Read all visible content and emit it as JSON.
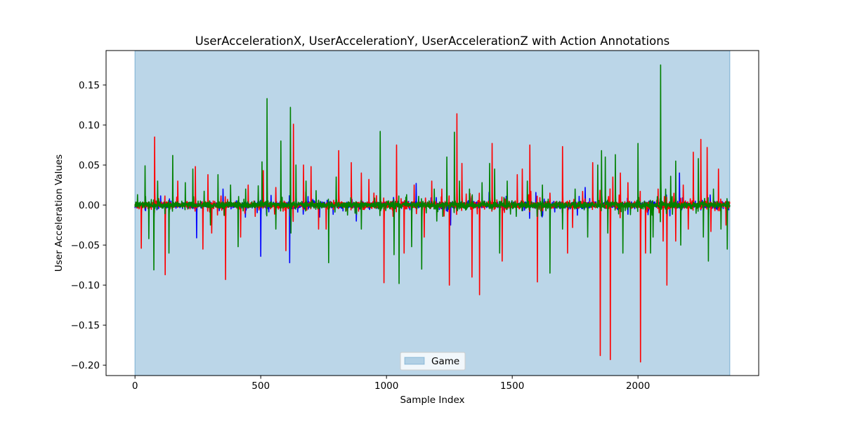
{
  "chart_data": {
    "type": "line",
    "title": "UserAccelerationX, UserAccelerationY, UserAccelerationZ with Action Annotations",
    "xlabel": "Sample Index",
    "ylabel": "User Acceleration Values",
    "xlim": [
      -115,
      2480
    ],
    "ylim": [
      -0.213,
      0.193
    ],
    "x_ticks": [
      0,
      500,
      1000,
      1500,
      2000
    ],
    "x_tick_labels": [
      "0",
      "500",
      "1000",
      "1500",
      "2000"
    ],
    "y_ticks": [
      -0.2,
      -0.15,
      -0.1,
      -0.05,
      0.0,
      0.05,
      0.1,
      0.15
    ],
    "y_tick_labels": [
      "−0.20",
      "−0.15",
      "−0.10",
      "−0.05",
      "0.00",
      "0.05",
      "0.10",
      "0.15"
    ],
    "grid": false,
    "legend": {
      "placement": "lower center",
      "entries": [
        {
          "label": "Game",
          "color": "#1f77b4",
          "alpha": 0.3
        }
      ]
    },
    "annotations": [
      {
        "label": "Game",
        "x_start": 0,
        "x_end": 2365,
        "color": "#1f77b4",
        "alpha": 0.3
      }
    ],
    "n_samples": 2366,
    "noise_level": 0.004,
    "series": [
      {
        "color": "#0000ff",
        "spikes": [
          [
            245,
            -0.041
          ],
          [
            500,
            -0.064
          ],
          [
            615,
            -0.072
          ],
          [
            1118,
            0.027
          ],
          [
            1255,
            -0.025
          ],
          [
            1790,
            0.022
          ],
          [
            2165,
            0.04
          ],
          [
            2040,
            -0.012
          ],
          [
            350,
            0.02
          ],
          [
            880,
            -0.02
          ]
        ]
      },
      {
        "color": "#ff0000",
        "spikes": [
          [
            78,
            0.085
          ],
          [
            120,
            -0.087
          ],
          [
            25,
            -0.054
          ],
          [
            240,
            0.048
          ],
          [
            270,
            -0.055
          ],
          [
            290,
            0.038
          ],
          [
            305,
            -0.035
          ],
          [
            360,
            -0.093
          ],
          [
            450,
            0.025
          ],
          [
            510,
            0.043
          ],
          [
            600,
            -0.057
          ],
          [
            630,
            0.101
          ],
          [
            670,
            0.05
          ],
          [
            700,
            0.048
          ],
          [
            730,
            -0.03
          ],
          [
            810,
            0.068
          ],
          [
            860,
            0.053
          ],
          [
            900,
            0.04
          ],
          [
            930,
            0.032
          ],
          [
            990,
            -0.097
          ],
          [
            1040,
            0.075
          ],
          [
            1070,
            -0.06
          ],
          [
            1110,
            0.025
          ],
          [
            1180,
            0.03
          ],
          [
            1220,
            0.02
          ],
          [
            1250,
            -0.1
          ],
          [
            1280,
            0.114
          ],
          [
            1300,
            0.052
          ],
          [
            1340,
            -0.09
          ],
          [
            1370,
            -0.112
          ],
          [
            1420,
            0.077
          ],
          [
            1460,
            -0.07
          ],
          [
            1520,
            0.038
          ],
          [
            1540,
            0.045
          ],
          [
            1570,
            0.075
          ],
          [
            1600,
            -0.096
          ],
          [
            1650,
            0.015
          ],
          [
            1700,
            0.073
          ],
          [
            1720,
            -0.06
          ],
          [
            1740,
            -0.028
          ],
          [
            1780,
            0.017
          ],
          [
            1820,
            0.053
          ],
          [
            1850,
            -0.188
          ],
          [
            1890,
            -0.193
          ],
          [
            1930,
            0.04
          ],
          [
            1960,
            0.028
          ],
          [
            2010,
            -0.196
          ],
          [
            2030,
            -0.06
          ],
          [
            2080,
            0.02
          ],
          [
            2115,
            -0.1
          ],
          [
            2180,
            0.025
          ],
          [
            2220,
            0.066
          ],
          [
            2250,
            0.082
          ],
          [
            2275,
            0.072
          ],
          [
            2290,
            -0.033
          ],
          [
            2320,
            0.045
          ],
          [
            2350,
            -0.025
          ],
          [
            2200,
            -0.03
          ],
          [
            2100,
            -0.045
          ],
          [
            1900,
            0.035
          ],
          [
            1150,
            -0.04
          ],
          [
            950,
            0.015
          ],
          [
            760,
            -0.03
          ],
          [
            560,
            0.022
          ],
          [
            420,
            -0.04
          ],
          [
            170,
            0.03
          ],
          [
            2150,
            -0.045
          ]
        ]
      },
      {
        "color": "#008000",
        "spikes": [
          [
            10,
            0.013
          ],
          [
            40,
            0.049
          ],
          [
            55,
            -0.042
          ],
          [
            75,
            -0.081
          ],
          [
            90,
            0.03
          ],
          [
            135,
            -0.06
          ],
          [
            150,
            0.062
          ],
          [
            200,
            0.028
          ],
          [
            230,
            0.045
          ],
          [
            330,
            0.038
          ],
          [
            380,
            0.025
          ],
          [
            410,
            -0.052
          ],
          [
            440,
            0.02
          ],
          [
            490,
            0.024
          ],
          [
            505,
            0.054
          ],
          [
            525,
            0.133
          ],
          [
            560,
            -0.03
          ],
          [
            580,
            0.08
          ],
          [
            618,
            0.122
          ],
          [
            640,
            0.05
          ],
          [
            680,
            0.03
          ],
          [
            720,
            0.018
          ],
          [
            770,
            -0.072
          ],
          [
            800,
            0.035
          ],
          [
            900,
            -0.03
          ],
          [
            975,
            0.092
          ],
          [
            1030,
            -0.062
          ],
          [
            1050,
            -0.098
          ],
          [
            1080,
            0.013
          ],
          [
            1100,
            -0.052
          ],
          [
            1140,
            -0.08
          ],
          [
            1190,
            0.02
          ],
          [
            1240,
            0.06
          ],
          [
            1270,
            0.091
          ],
          [
            1290,
            0.03
          ],
          [
            1330,
            0.02
          ],
          [
            1380,
            0.028
          ],
          [
            1410,
            0.052
          ],
          [
            1430,
            0.045
          ],
          [
            1450,
            -0.06
          ],
          [
            1480,
            0.03
          ],
          [
            1560,
            0.03
          ],
          [
            1650,
            -0.085
          ],
          [
            1700,
            -0.03
          ],
          [
            1750,
            0.02
          ],
          [
            1800,
            -0.04
          ],
          [
            1840,
            0.05
          ],
          [
            1855,
            0.068
          ],
          [
            1870,
            0.06
          ],
          [
            1910,
            0.063
          ],
          [
            1940,
            -0.06
          ],
          [
            1970,
            -0.012
          ],
          [
            2000,
            0.077
          ],
          [
            2050,
            -0.06
          ],
          [
            2060,
            -0.04
          ],
          [
            2090,
            0.175
          ],
          [
            2110,
            0.02
          ],
          [
            2130,
            0.036
          ],
          [
            2150,
            0.055
          ],
          [
            2170,
            -0.05
          ],
          [
            2240,
            0.058
          ],
          [
            2260,
            -0.04
          ],
          [
            2280,
            -0.07
          ],
          [
            2300,
            0.02
          ],
          [
            2330,
            -0.03
          ],
          [
            2355,
            -0.055
          ],
          [
            300,
            -0.025
          ],
          [
            620,
            -0.035
          ],
          [
            1200,
            -0.02
          ],
          [
            1620,
            0.025
          ],
          [
            1880,
            -0.035
          ]
        ]
      }
    ]
  }
}
